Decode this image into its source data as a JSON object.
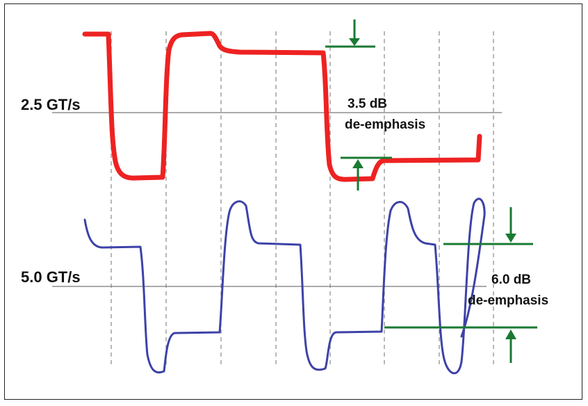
{
  "top": {
    "rate_label": "2.5 GT/s",
    "deemph_value": "3.5 dB",
    "deemph_text": "de-emphasis",
    "trace_color": "#ee2222"
  },
  "bottom": {
    "rate_label": "5.0 GT/s",
    "deemph_value": "6.0 dB",
    "deemph_text": "de-emphasis",
    "trace_color": "#3d42a8"
  },
  "colors": {
    "marker": "#1a7a32",
    "grid": "#888888",
    "reference_line": "#777777"
  }
}
